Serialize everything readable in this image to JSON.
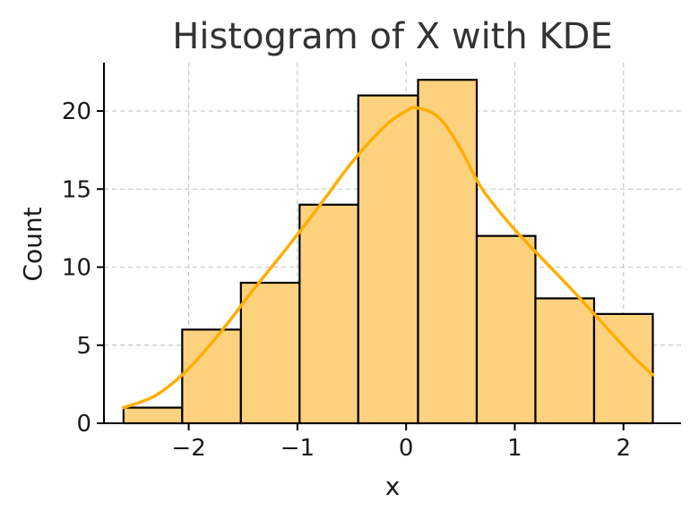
{
  "chart_data": {
    "type": "bar",
    "title": "Histogram of X with KDE",
    "xlabel": "x",
    "ylabel": "Count",
    "xlim": [
      -2.78,
      2.53
    ],
    "ylim": [
      0,
      23.1
    ],
    "grid": true,
    "x_ticks": [
      -2,
      -1,
      0,
      1,
      2
    ],
    "y_ticks": [
      0,
      5,
      10,
      15,
      20
    ],
    "bins": [
      {
        "start": -2.6,
        "end": -2.06,
        "count": 1
      },
      {
        "start": -2.06,
        "end": -1.52,
        "count": 6
      },
      {
        "start": -1.52,
        "end": -0.98,
        "count": 9
      },
      {
        "start": -0.98,
        "end": -0.44,
        "count": 14
      },
      {
        "start": -0.44,
        "end": 0.11,
        "count": 21
      },
      {
        "start": 0.11,
        "end": 0.65,
        "count": 22
      },
      {
        "start": 0.65,
        "end": 1.19,
        "count": 12
      },
      {
        "start": 1.19,
        "end": 1.73,
        "count": 8
      },
      {
        "start": 1.73,
        "end": 2.27,
        "count": 7
      }
    ],
    "kde": {
      "x": [
        -2.6,
        -2.3,
        -2.0,
        -1.7,
        -1.4,
        -1.1,
        -0.8,
        -0.5,
        -0.2,
        0.0,
        0.1,
        0.3,
        0.5,
        0.7,
        1.0,
        1.3,
        1.6,
        1.9,
        2.1,
        2.27
      ],
      "y": [
        1.0,
        1.8,
        3.5,
        5.9,
        8.6,
        11.2,
        13.9,
        16.7,
        19.0,
        20.0,
        20.2,
        19.6,
        17.6,
        15.0,
        12.4,
        10.2,
        8.0,
        5.7,
        4.2,
        3.1
      ]
    },
    "colors": {
      "bar_fill": "#fdd27e",
      "bar_edge": "#000000",
      "kde_line": "#ffae00"
    }
  }
}
